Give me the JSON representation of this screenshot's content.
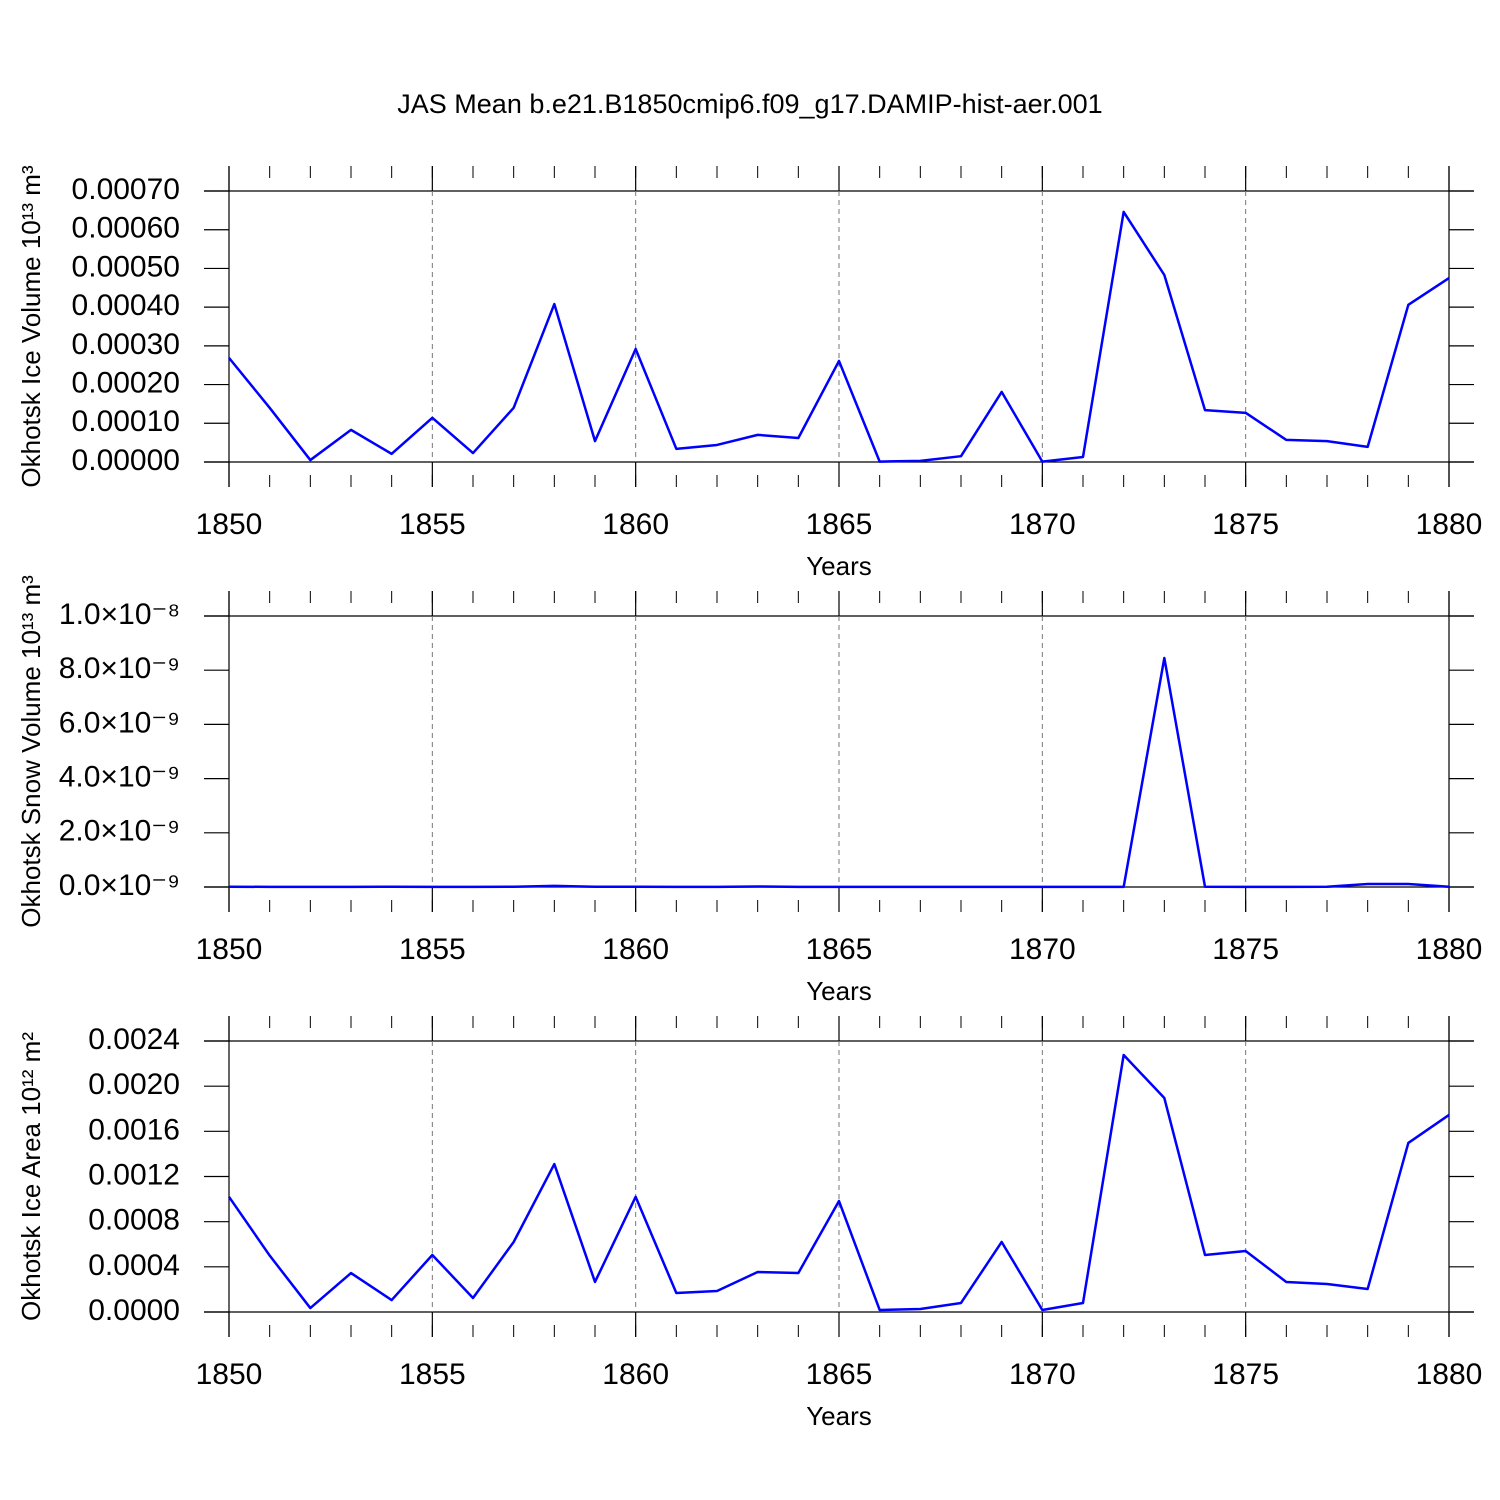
{
  "title": "JAS Mean b.e21.B1850cmip6.f09_g17.DAMIP-hist-aer.001",
  "chart_data": [
    {
      "type": "line",
      "x_label": "Years",
      "y_label": "Okhotsk Ice Volume 10¹³ m³",
      "x": [
        1850,
        1851,
        1852,
        1853,
        1854,
        1855,
        1856,
        1857,
        1858,
        1859,
        1860,
        1861,
        1862,
        1863,
        1864,
        1865,
        1866,
        1867,
        1868,
        1869,
        1870,
        1871,
        1872,
        1873,
        1874,
        1875,
        1876,
        1877,
        1878,
        1879,
        1880
      ],
      "series": [
        {
          "name": "Okhotsk Ice Volume",
          "color": "#0000ff",
          "values": [
            0.000269,
            0.00014,
            5e-06,
            8.3e-05,
            2.1e-05,
            0.000114,
            2.3e-05,
            0.00014,
            0.000408,
            5.4e-05,
            0.000292,
            3.4e-05,
            4.4e-05,
            7e-05,
            6.2e-05,
            0.000261,
            1e-06,
            3e-06,
            1.5e-05,
            0.000181,
            1e-06,
            1.3e-05,
            0.000646,
            0.000483,
            0.000134,
            0.000127,
            5.7e-05,
            5.4e-05,
            3.9e-05,
            0.000406,
            0.000475
          ]
        }
      ],
      "xlim": [
        1850,
        1880
      ],
      "xticks": [
        1850,
        1855,
        1860,
        1865,
        1870,
        1875,
        1880
      ],
      "ylim": [
        0,
        0.0007
      ],
      "yticks": [
        {
          "value": 0,
          "label": "0.00000"
        },
        {
          "value": 0.0001,
          "label": "0.00010"
        },
        {
          "value": 0.0002,
          "label": "0.00020"
        },
        {
          "value": 0.0003,
          "label": "0.00030"
        },
        {
          "value": 0.0004,
          "label": "0.00040"
        },
        {
          "value": 0.0005,
          "label": "0.00050"
        },
        {
          "value": 0.0006,
          "label": "0.00060"
        },
        {
          "value": 0.0007,
          "label": "0.00070"
        }
      ],
      "grid": true
    },
    {
      "type": "line",
      "x_label": "Years",
      "y_label": "Okhotsk Snow Volume 10¹³ m³",
      "x": [
        1850,
        1851,
        1852,
        1853,
        1854,
        1855,
        1856,
        1857,
        1858,
        1859,
        1860,
        1861,
        1862,
        1863,
        1864,
        1865,
        1866,
        1867,
        1868,
        1869,
        1870,
        1871,
        1872,
        1873,
        1874,
        1875,
        1876,
        1877,
        1878,
        1879,
        1880
      ],
      "series": [
        {
          "name": "Okhotsk Snow Volume",
          "color": "#0000ff",
          "values": [
            1e-11,
            5e-12,
            3e-12,
            5e-12,
            8e-12,
            5e-12,
            5e-12,
            1e-11,
            4e-11,
            1e-11,
            1e-11,
            5e-12,
            5e-12,
            2e-11,
            5e-12,
            5e-12,
            3e-12,
            3e-12,
            3e-12,
            5e-12,
            3e-12,
            3e-12,
            5e-12,
            8.45e-09,
            1e-11,
            5e-12,
            5e-12,
            1e-11,
            1.1e-10,
            1.1e-10,
            1e-11
          ]
        }
      ],
      "xlim": [
        1850,
        1880
      ],
      "xticks": [
        1850,
        1855,
        1860,
        1865,
        1870,
        1875,
        1880
      ],
      "ylim": [
        0,
        1e-08
      ],
      "yticks": [
        {
          "value": 0,
          "label": "0.0×10⁻⁹"
        },
        {
          "value": 2e-09,
          "label": "2.0×10⁻⁹"
        },
        {
          "value": 4e-09,
          "label": "4.0×10⁻⁹"
        },
        {
          "value": 6e-09,
          "label": "6.0×10⁻⁹"
        },
        {
          "value": 8e-09,
          "label": "8.0×10⁻⁹"
        },
        {
          "value": 1e-08,
          "label": "1.0×10⁻⁸"
        }
      ],
      "grid": true
    },
    {
      "type": "line",
      "x_label": "Years",
      "y_label": "Okhotsk Ice Area 10¹² m²",
      "x": [
        1850,
        1851,
        1852,
        1853,
        1854,
        1855,
        1856,
        1857,
        1858,
        1859,
        1860,
        1861,
        1862,
        1863,
        1864,
        1865,
        1866,
        1867,
        1868,
        1869,
        1870,
        1871,
        1872,
        1873,
        1874,
        1875,
        1876,
        1877,
        1878,
        1879,
        1880
      ],
      "series": [
        {
          "name": "Okhotsk Ice Area",
          "color": "#0000ff",
          "values": [
            0.00102,
            0.0005,
            3.5e-05,
            0.000345,
            0.000106,
            0.000505,
            0.000124,
            0.00062,
            0.00131,
            0.000266,
            0.00102,
            0.000168,
            0.000186,
            0.000354,
            0.000345,
            0.000983,
            1.8e-05,
            2.7e-05,
            8e-05,
            0.00062,
            1.8e-05,
            8e-05,
            0.002276,
            0.001895,
            0.000505,
            0.00054,
            0.000266,
            0.000248,
            0.000204,
            0.001497,
            0.001745
          ]
        }
      ],
      "xlim": [
        1850,
        1880
      ],
      "xticks": [
        1850,
        1855,
        1860,
        1865,
        1870,
        1875,
        1880
      ],
      "ylim": [
        0,
        0.0024
      ],
      "yticks": [
        {
          "value": 0,
          "label": "0.0000"
        },
        {
          "value": 0.0004,
          "label": "0.0004"
        },
        {
          "value": 0.0008,
          "label": "0.0008"
        },
        {
          "value": 0.0012,
          "label": "0.0012"
        },
        {
          "value": 0.0016,
          "label": "0.0016"
        },
        {
          "value": 0.002,
          "label": "0.0020"
        },
        {
          "value": 0.0024,
          "label": "0.0024"
        }
      ],
      "grid": true
    }
  ]
}
